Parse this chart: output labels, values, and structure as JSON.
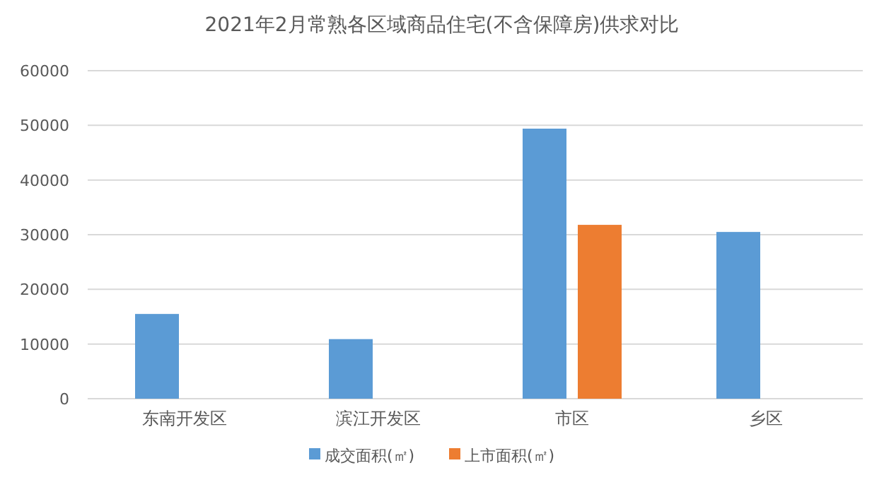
{
  "chart_data": {
    "type": "bar",
    "title": "2021年2月常熟各区域商品住宅(不含保障房)供求对比",
    "categories": [
      "东南开发区",
      "滨江开发区",
      "市区",
      "乡区"
    ],
    "series": [
      {
        "name": "成交面积(㎡)",
        "color": "#5b9bd5",
        "values": [
          15500,
          10900,
          49400,
          30500
        ]
      },
      {
        "name": "上市面积(㎡)",
        "color": "#ed7d31",
        "values": [
          null,
          null,
          31800,
          null
        ]
      }
    ],
    "ylim": [
      0,
      60000
    ],
    "yticks": [
      0,
      10000,
      20000,
      30000,
      40000,
      50000,
      60000
    ],
    "grid": "y",
    "legend": "bottom"
  }
}
